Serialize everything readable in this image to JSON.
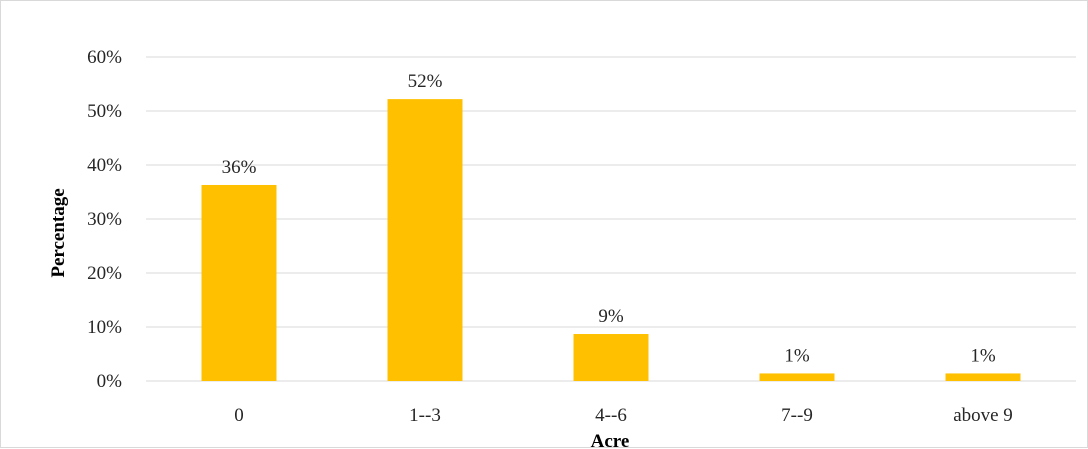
{
  "chart_data": {
    "type": "bar",
    "title": "",
    "xlabel": "Acre",
    "ylabel": "Percentage",
    "categories": [
      "0",
      "1--3",
      "4--6",
      "7--9",
      "above 9"
    ],
    "values": [
      36.3,
      52.2,
      8.7,
      1.4,
      1.4
    ],
    "data_labels": [
      "36%",
      "52%",
      "9%",
      "1%",
      "1%"
    ],
    "yticks": [
      "0%",
      "10%",
      "20%",
      "30%",
      "40%",
      "50%",
      "60%"
    ],
    "ylim": [
      0,
      60
    ],
    "grid": true,
    "legend": "none",
    "bar_color": "#ffc000",
    "grid_color": "#d9d9d9"
  }
}
